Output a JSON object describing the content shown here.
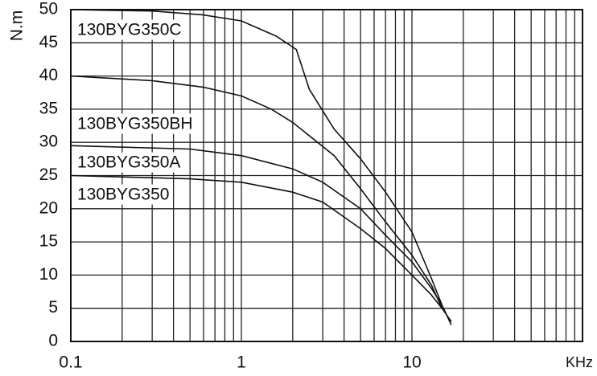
{
  "chart_data": {
    "type": "line",
    "x_label": "KHz",
    "y_label": "N.m",
    "xlim": [
      0.1,
      100
    ],
    "ylim": [
      0,
      50
    ],
    "log_x": true,
    "grid": true,
    "xticks": [
      0.1,
      1,
      10
    ],
    "minor_xticks": [
      0.2,
      0.3,
      0.4,
      0.5,
      0.6,
      0.7,
      0.8,
      0.9,
      2,
      3,
      4,
      5,
      6,
      7,
      8,
      9,
      20,
      30,
      40,
      50,
      60,
      70,
      80,
      90
    ],
    "yticks": [
      0,
      5,
      10,
      15,
      20,
      25,
      30,
      35,
      40,
      45,
      50
    ],
    "series": [
      {
        "name": "130BYG350C",
        "color": "#111111",
        "x": [
          0.1,
          0.3,
          0.6,
          1,
          1.6,
          2.1,
          2.5,
          3.5,
          5,
          7,
          10,
          13,
          15,
          17
        ],
        "values": [
          50,
          49.8,
          49.2,
          48.3,
          46,
          44,
          38,
          32,
          27.5,
          22.5,
          16.5,
          9.5,
          5.5,
          2.5
        ]
      },
      {
        "name": "130BYG350BH",
        "color": "#111111",
        "x": [
          0.1,
          0.3,
          0.6,
          1,
          1.5,
          2,
          3.5,
          5,
          7,
          10,
          13,
          15
        ],
        "values": [
          40,
          39.3,
          38.3,
          37,
          35,
          33,
          28,
          23,
          18,
          13,
          8.5,
          5
        ]
      },
      {
        "name": "130BYG350A",
        "color": "#111111",
        "x": [
          0.1,
          0.5,
          1,
          2,
          3,
          5,
          7,
          10,
          13,
          15
        ],
        "values": [
          29.5,
          29,
          28,
          26,
          24,
          20,
          16,
          12,
          8,
          5.5
        ]
      },
      {
        "name": "130BYG350",
        "color": "#111111",
        "x": [
          0.1,
          0.5,
          1,
          2,
          3,
          5,
          7,
          10,
          13,
          15,
          17
        ],
        "values": [
          25,
          24.5,
          24,
          22.5,
          21,
          17,
          14,
          10,
          7,
          5,
          3
        ]
      }
    ]
  }
}
